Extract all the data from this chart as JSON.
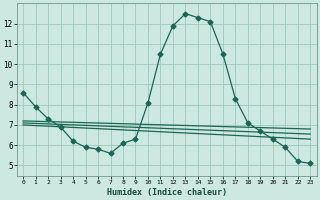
{
  "xlabel": "Humidex (Indice chaleur)",
  "xlim": [
    -0.5,
    23.5
  ],
  "ylim": [
    4.5,
    13.0
  ],
  "yticks": [
    5,
    6,
    7,
    8,
    9,
    10,
    11,
    12
  ],
  "xticks": [
    0,
    1,
    2,
    3,
    4,
    5,
    6,
    7,
    8,
    9,
    10,
    11,
    12,
    13,
    14,
    15,
    16,
    17,
    18,
    19,
    20,
    21,
    22,
    23
  ],
  "bg_color": "#cce8e0",
  "grid_color": "#9dc8bc",
  "line_color": "#1a6655",
  "lines": [
    {
      "x": [
        0,
        1,
        2,
        3,
        4,
        5,
        6,
        7,
        8,
        9,
        10,
        11,
        12,
        13,
        14,
        15,
        16,
        17,
        18,
        19,
        20,
        21,
        22,
        23
      ],
      "y": [
        8.6,
        7.9,
        7.3,
        6.9,
        6.2,
        5.9,
        5.8,
        5.6,
        6.1,
        6.3,
        8.1,
        10.5,
        11.9,
        12.5,
        12.3,
        12.1,
        10.5,
        8.3,
        7.1,
        6.7,
        6.3,
        5.9,
        5.2,
        5.1
      ],
      "marker": "D",
      "markersize": 2.5
    },
    {
      "x": [
        0,
        23
      ],
      "y": [
        7.2,
        6.8
      ],
      "marker": null
    },
    {
      "x": [
        0,
        23
      ],
      "y": [
        7.1,
        6.55
      ],
      "marker": null
    },
    {
      "x": [
        0,
        23
      ],
      "y": [
        7.0,
        6.3
      ],
      "marker": null
    }
  ]
}
